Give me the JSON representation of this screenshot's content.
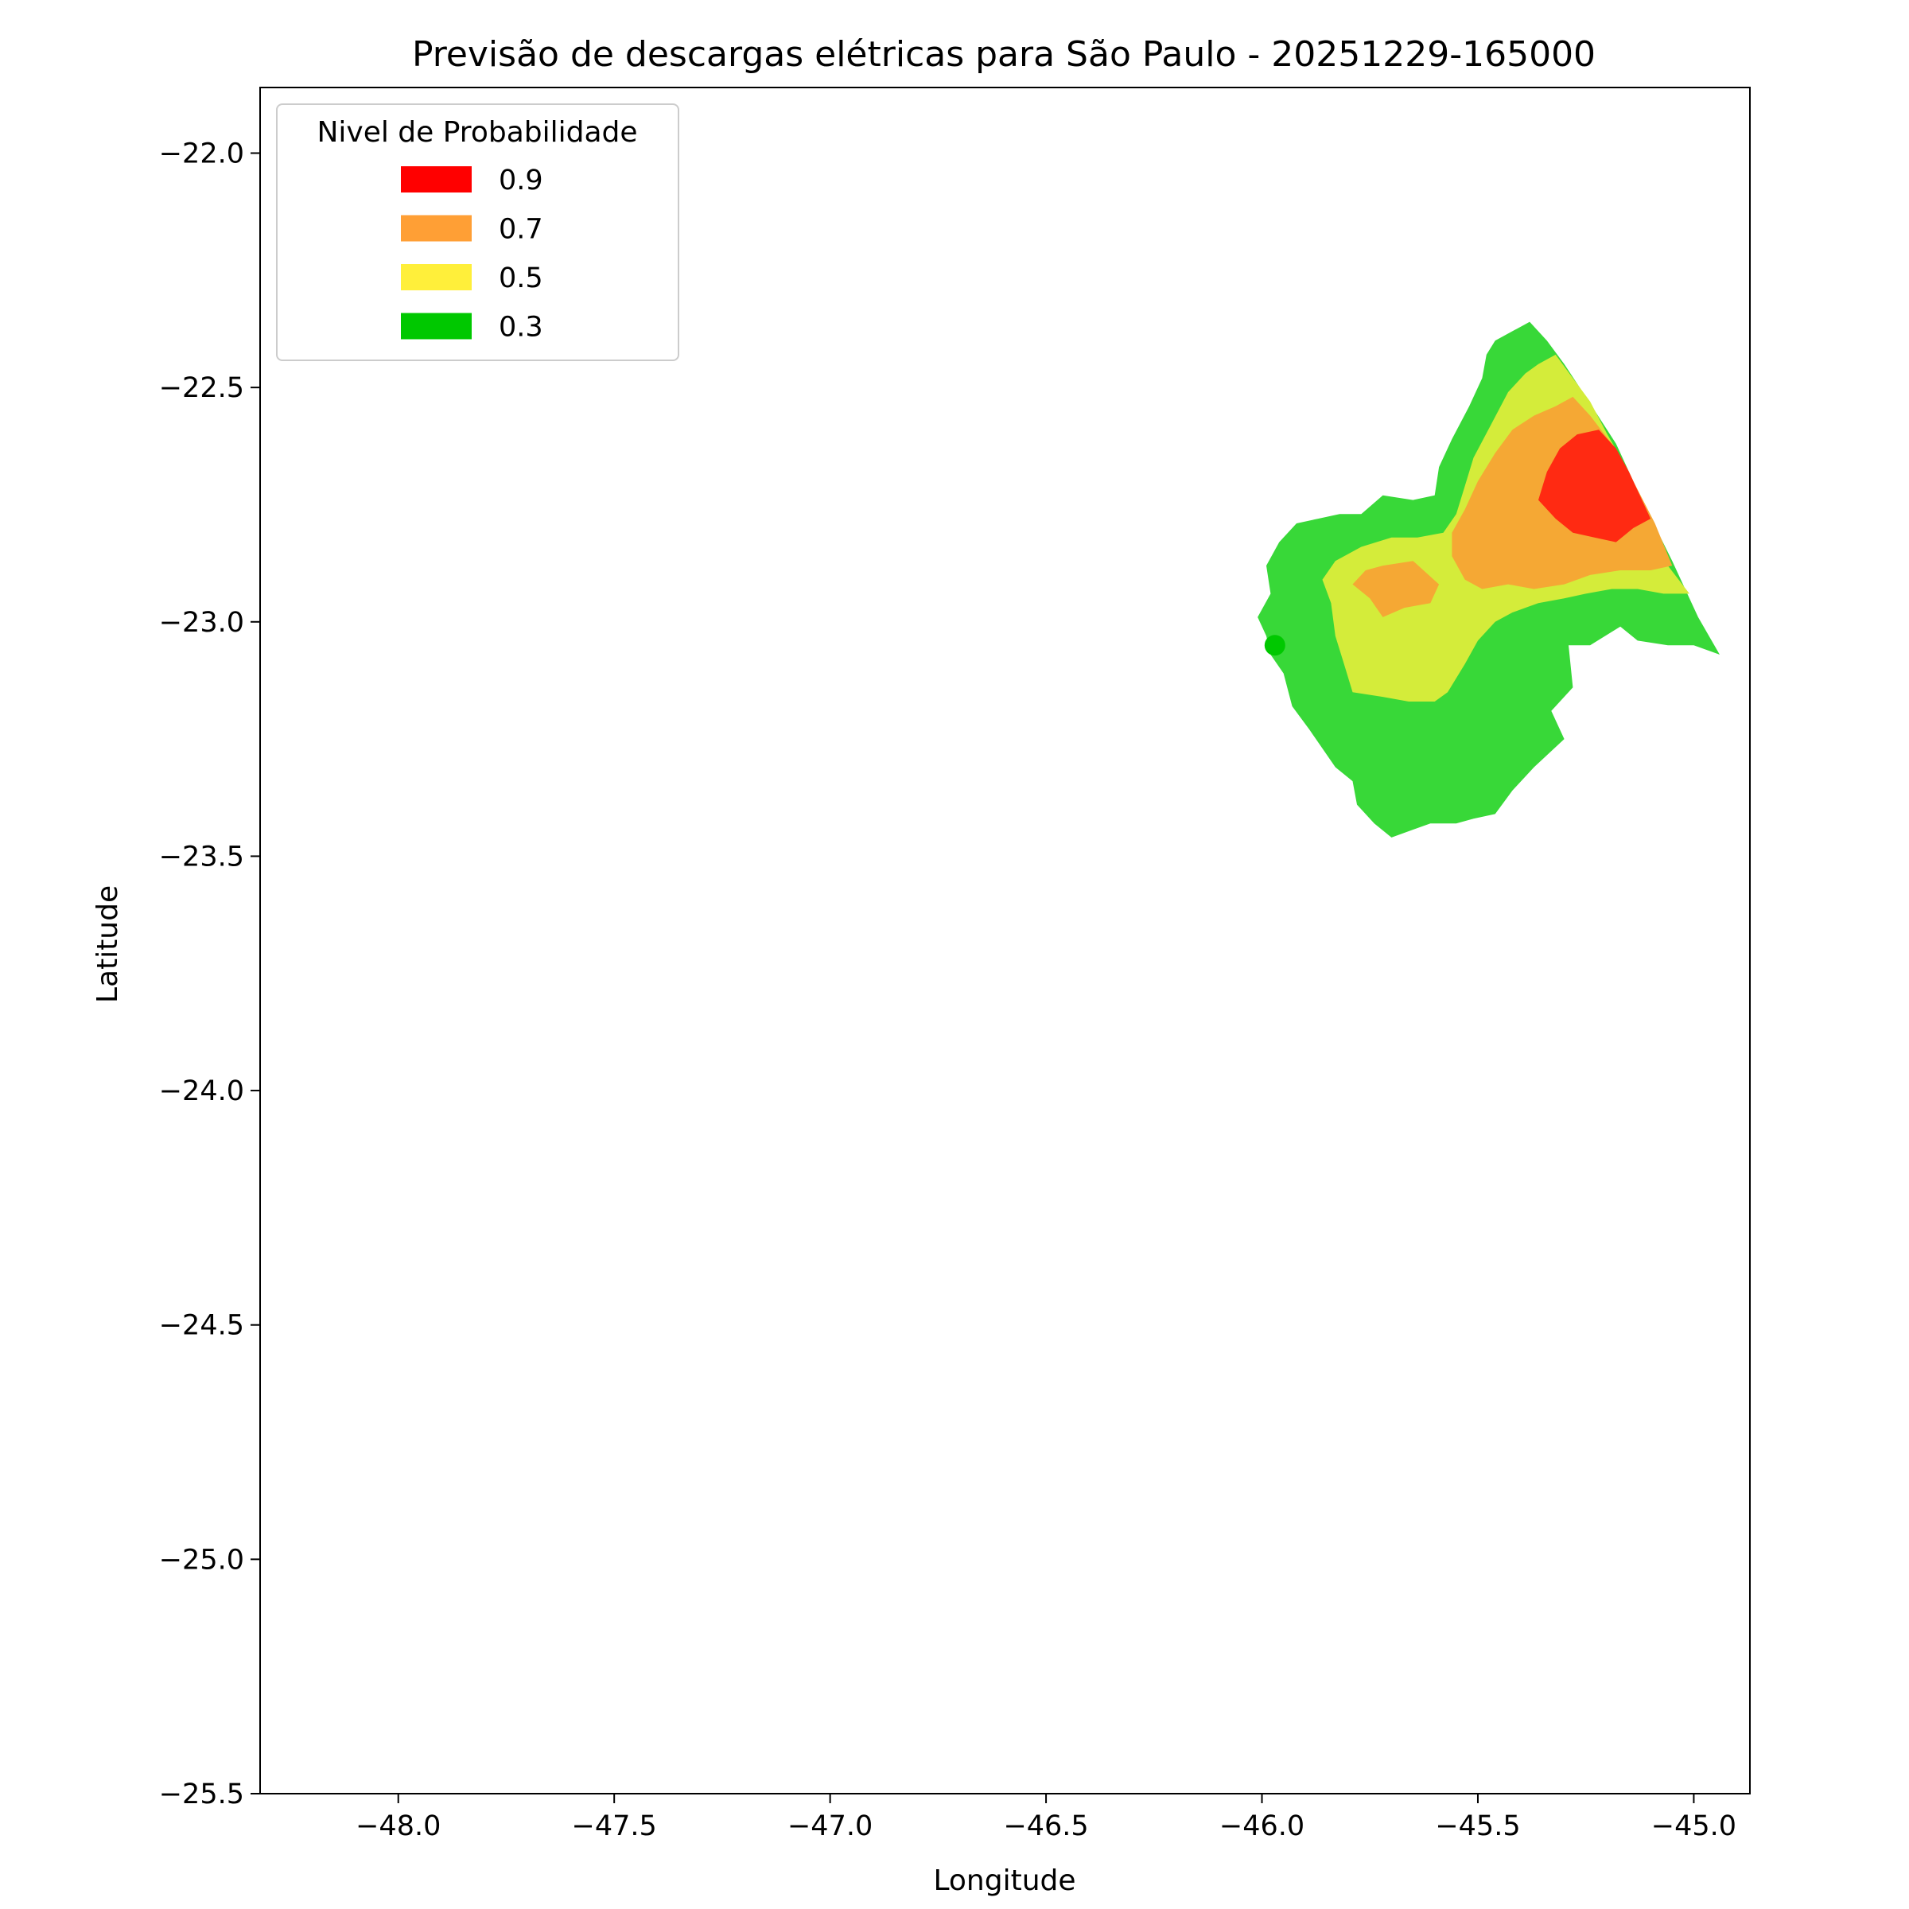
{
  "chart_data": {
    "type": "contour-map",
    "title": "Previsão de descargas elétricas para São Paulo - 20251229-165000",
    "xlabel": "Longitude",
    "ylabel": "Latitude",
    "xlim": [
      -48.32,
      -44.87
    ],
    "ylim": [
      -25.5,
      -21.86
    ],
    "xticks": [
      -48.0,
      -47.5,
      -47.0,
      -46.5,
      -46.0,
      -45.5,
      -45.0
    ],
    "xtick_labels": [
      "−48.0",
      "−47.5",
      "−47.0",
      "−46.5",
      "−46.0",
      "−45.5",
      "−45.0"
    ],
    "yticks": [
      -22.0,
      -22.5,
      -23.0,
      -23.5,
      -24.0,
      -24.5,
      -25.0,
      -25.5
    ],
    "ytick_labels": [
      "−22.0",
      "−22.5",
      "−23.0",
      "−23.5",
      "−24.0",
      "−24.5",
      "−25.0",
      "−25.5"
    ],
    "grid": false,
    "legend": {
      "title": "Nivel de Probabilidade",
      "placement": "upper-left",
      "entries": [
        {
          "label": "0.9",
          "color": "#ff0000"
        },
        {
          "label": "0.7",
          "color": "#ff9f35"
        },
        {
          "label": "0.5",
          "color": "#ffef3a"
        },
        {
          "label": "0.3",
          "color": "#00c800"
        }
      ]
    },
    "regions": [
      {
        "level": "0.3",
        "color": "#38d838",
        "polygon": [
          [
            -45.38,
            -22.36
          ],
          [
            -45.34,
            -22.4
          ],
          [
            -45.3,
            -22.45
          ],
          [
            -45.25,
            -22.52
          ],
          [
            -45.18,
            -22.62
          ],
          [
            -45.12,
            -22.74
          ],
          [
            -45.05,
            -22.87
          ],
          [
            -44.99,
            -22.99
          ],
          [
            -44.94,
            -23.07
          ],
          [
            -45.0,
            -23.05
          ],
          [
            -45.06,
            -23.05
          ],
          [
            -45.13,
            -23.04
          ],
          [
            -45.17,
            -23.01
          ],
          [
            -45.24,
            -23.05
          ],
          [
            -45.29,
            -23.05
          ],
          [
            -45.28,
            -23.14
          ],
          [
            -45.33,
            -23.19
          ],
          [
            -45.3,
            -23.25
          ],
          [
            -45.37,
            -23.31
          ],
          [
            -45.42,
            -23.36
          ],
          [
            -45.46,
            -23.41
          ],
          [
            -45.51,
            -23.42
          ],
          [
            -45.55,
            -23.43
          ],
          [
            -45.61,
            -23.43
          ],
          [
            -45.7,
            -23.46
          ],
          [
            -45.74,
            -23.43
          ],
          [
            -45.78,
            -23.39
          ],
          [
            -45.79,
            -23.34
          ],
          [
            -45.83,
            -23.31
          ],
          [
            -45.86,
            -23.27
          ],
          [
            -45.89,
            -23.23
          ],
          [
            -45.93,
            -23.18
          ],
          [
            -45.95,
            -23.11
          ],
          [
            -45.98,
            -23.07
          ],
          [
            -45.99,
            -23.03
          ],
          [
            -46.01,
            -22.99
          ],
          [
            -45.98,
            -22.94
          ],
          [
            -45.99,
            -22.88
          ],
          [
            -45.96,
            -22.83
          ],
          [
            -45.92,
            -22.79
          ],
          [
            -45.87,
            -22.78
          ],
          [
            -45.82,
            -22.77
          ],
          [
            -45.77,
            -22.77
          ],
          [
            -45.72,
            -22.73
          ],
          [
            -45.65,
            -22.74
          ],
          [
            -45.6,
            -22.73
          ],
          [
            -45.59,
            -22.67
          ],
          [
            -45.56,
            -22.61
          ],
          [
            -45.52,
            -22.54
          ],
          [
            -45.49,
            -22.48
          ],
          [
            -45.48,
            -22.43
          ],
          [
            -45.46,
            -22.4
          ],
          [
            -45.42,
            -22.38
          ]
        ]
      },
      {
        "level": "0.5",
        "color": "#d4ec3a",
        "polygon": [
          [
            -45.32,
            -22.43
          ],
          [
            -45.28,
            -22.48
          ],
          [
            -45.24,
            -22.53
          ],
          [
            -45.2,
            -22.6
          ],
          [
            -45.15,
            -22.68
          ],
          [
            -45.1,
            -22.78
          ],
          [
            -45.06,
            -22.88
          ],
          [
            -45.01,
            -22.94
          ],
          [
            -45.07,
            -22.94
          ],
          [
            -45.13,
            -22.93
          ],
          [
            -45.19,
            -22.93
          ],
          [
            -45.25,
            -22.94
          ],
          [
            -45.3,
            -22.95
          ],
          [
            -45.36,
            -22.96
          ],
          [
            -45.42,
            -22.98
          ],
          [
            -45.46,
            -23.0
          ],
          [
            -45.5,
            -23.04
          ],
          [
            -45.53,
            -23.09
          ],
          [
            -45.57,
            -23.15
          ],
          [
            -45.6,
            -23.17
          ],
          [
            -45.66,
            -23.17
          ],
          [
            -45.72,
            -23.16
          ],
          [
            -45.79,
            -23.15
          ],
          [
            -45.81,
            -23.09
          ],
          [
            -45.83,
            -23.03
          ],
          [
            -45.84,
            -22.96
          ],
          [
            -45.86,
            -22.91
          ],
          [
            -45.83,
            -22.87
          ],
          [
            -45.77,
            -22.84
          ],
          [
            -45.7,
            -22.82
          ],
          [
            -45.64,
            -22.82
          ],
          [
            -45.58,
            -22.81
          ],
          [
            -45.55,
            -22.77
          ],
          [
            -45.53,
            -22.71
          ],
          [
            -45.51,
            -22.65
          ],
          [
            -45.47,
            -22.58
          ],
          [
            -45.43,
            -22.51
          ],
          [
            -45.39,
            -22.47
          ],
          [
            -45.36,
            -22.45
          ]
        ]
      },
      {
        "level": "0.7",
        "color": "#f5a834",
        "polygon": [
          [
            -45.28,
            -22.52
          ],
          [
            -45.24,
            -22.56
          ],
          [
            -45.19,
            -22.62
          ],
          [
            -45.14,
            -22.7
          ],
          [
            -45.09,
            -22.79
          ],
          [
            -45.05,
            -22.88
          ],
          [
            -45.1,
            -22.89
          ],
          [
            -45.17,
            -22.89
          ],
          [
            -45.24,
            -22.9
          ],
          [
            -45.3,
            -22.92
          ],
          [
            -45.37,
            -22.93
          ],
          [
            -45.43,
            -22.92
          ],
          [
            -45.49,
            -22.93
          ],
          [
            -45.53,
            -22.91
          ],
          [
            -45.56,
            -22.86
          ],
          [
            -45.56,
            -22.81
          ],
          [
            -45.53,
            -22.76
          ],
          [
            -45.5,
            -22.7
          ],
          [
            -45.46,
            -22.64
          ],
          [
            -45.42,
            -22.59
          ],
          [
            -45.37,
            -22.56
          ],
          [
            -45.32,
            -22.54
          ]
        ]
      },
      {
        "level": "0.7",
        "color": "#f5a834",
        "polygon": [
          [
            -45.65,
            -22.87
          ],
          [
            -45.59,
            -22.92
          ],
          [
            -45.61,
            -22.96
          ],
          [
            -45.67,
            -22.97
          ],
          [
            -45.72,
            -22.99
          ],
          [
            -45.75,
            -22.95
          ],
          [
            -45.79,
            -22.92
          ],
          [
            -45.76,
            -22.89
          ],
          [
            -45.72,
            -22.88
          ]
        ]
      },
      {
        "level": "0.9",
        "color": "#ff2a12",
        "polygon": [
          [
            -45.22,
            -22.59
          ],
          [
            -45.18,
            -22.63
          ],
          [
            -45.15,
            -22.68
          ],
          [
            -45.12,
            -22.74
          ],
          [
            -45.1,
            -22.78
          ],
          [
            -45.14,
            -22.8
          ],
          [
            -45.18,
            -22.83
          ],
          [
            -45.23,
            -22.82
          ],
          [
            -45.28,
            -22.81
          ],
          [
            -45.32,
            -22.78
          ],
          [
            -45.36,
            -22.74
          ],
          [
            -45.34,
            -22.68
          ],
          [
            -45.31,
            -22.63
          ],
          [
            -45.27,
            -22.6
          ]
        ]
      }
    ],
    "markers": [
      {
        "lon": -45.97,
        "lat": -23.05,
        "color": "#00c800"
      }
    ]
  }
}
